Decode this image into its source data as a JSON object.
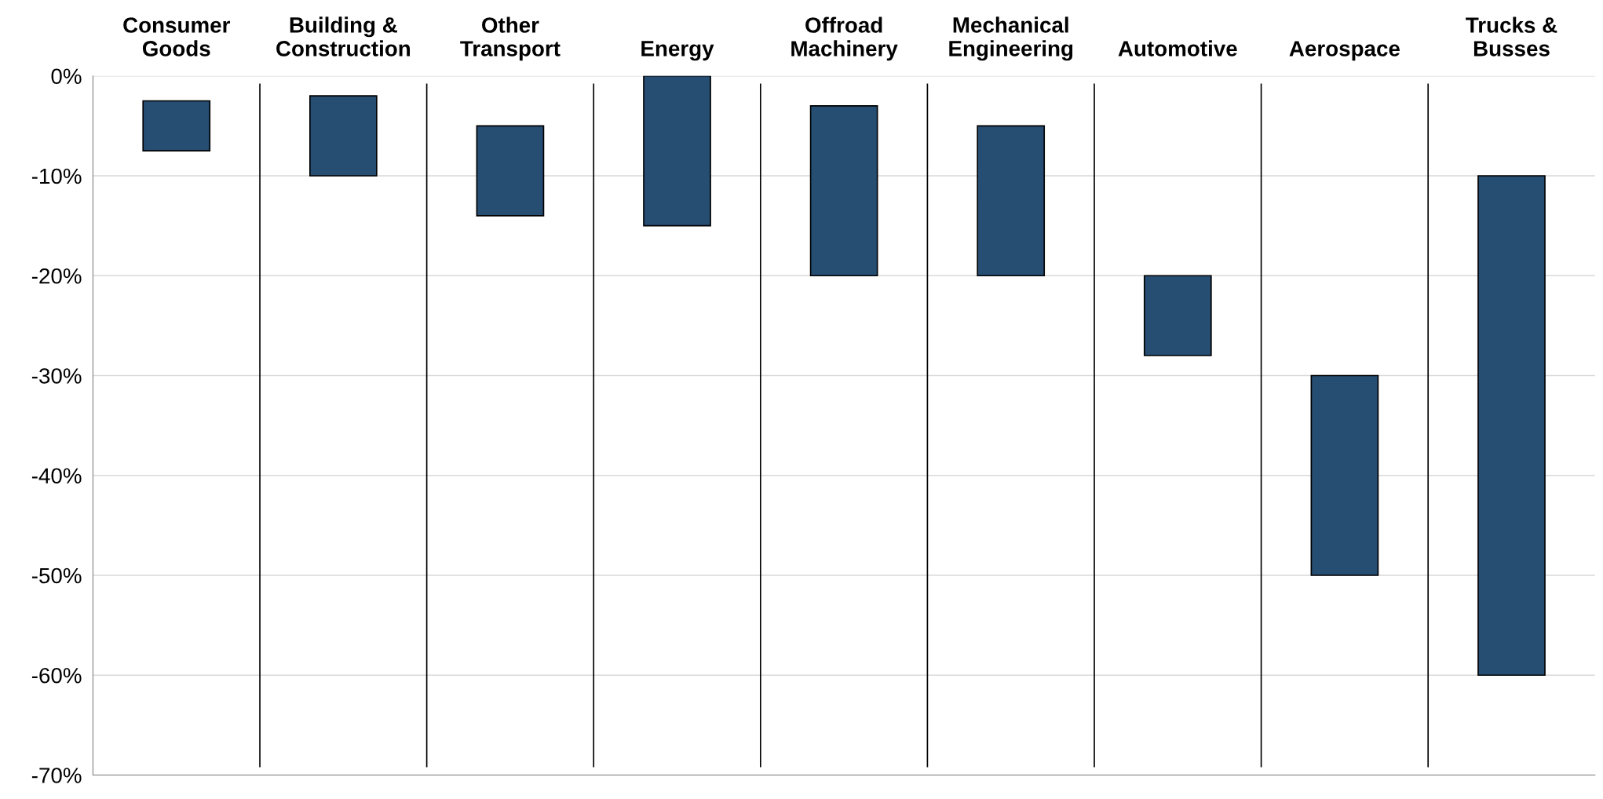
{
  "chart_data": {
    "type": "bar",
    "categories": [
      "Consumer\nGoods",
      "Building &\nConstruction",
      "Other\nTransport",
      "Energy",
      "Offroad\nMachinery",
      "Mechanical\nEngineering",
      "Automotive",
      "Aerospace",
      "Trucks &\nBusses"
    ],
    "base": [
      -7.5,
      -10,
      -14,
      -15,
      -20,
      -20,
      -28,
      -50,
      -60
    ],
    "values": [
      5,
      8,
      9,
      15,
      17,
      15,
      8,
      20,
      50
    ],
    "color": "#264d72",
    "ylim": [
      -70,
      0
    ],
    "yticks": [
      {
        "value": 0,
        "label": "0%"
      },
      {
        "value": -10,
        "label": "-10%"
      },
      {
        "value": -20,
        "label": "-20%"
      },
      {
        "value": -30,
        "label": "-30%"
      },
      {
        "value": -40,
        "label": "-40%"
      },
      {
        "value": -50,
        "label": "-50%"
      },
      {
        "value": -60,
        "label": "-60%"
      },
      {
        "value": -70,
        "label": "-70%"
      }
    ],
    "grid": true
  }
}
